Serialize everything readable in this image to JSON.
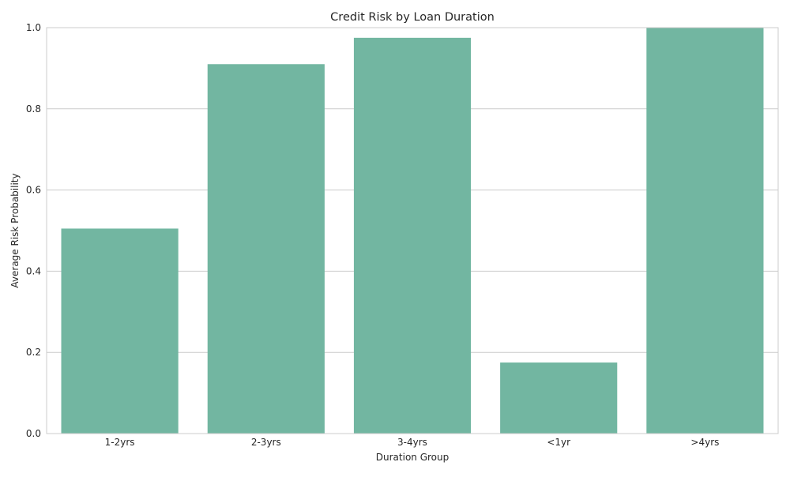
{
  "chart_data": {
    "type": "bar",
    "title": "Credit Risk by Loan Duration",
    "xlabel": "Duration Group",
    "ylabel": "Average Risk Probability",
    "categories": [
      "1-2yrs",
      "2-3yrs",
      "3-4yrs",
      "<1yr",
      ">4yrs"
    ],
    "values": [
      0.505,
      0.91,
      0.975,
      0.175,
      1.0
    ],
    "ylim": [
      0,
      1.0
    ],
    "yticks": [
      "0.0",
      "0.2",
      "0.4",
      "0.6",
      "0.8",
      "1.0"
    ],
    "grid": true,
    "legend": "none",
    "colors": {
      "bar": "#72b6a1",
      "grid": "#cccccc",
      "frame": "#cccccc",
      "text": "#262626"
    }
  }
}
